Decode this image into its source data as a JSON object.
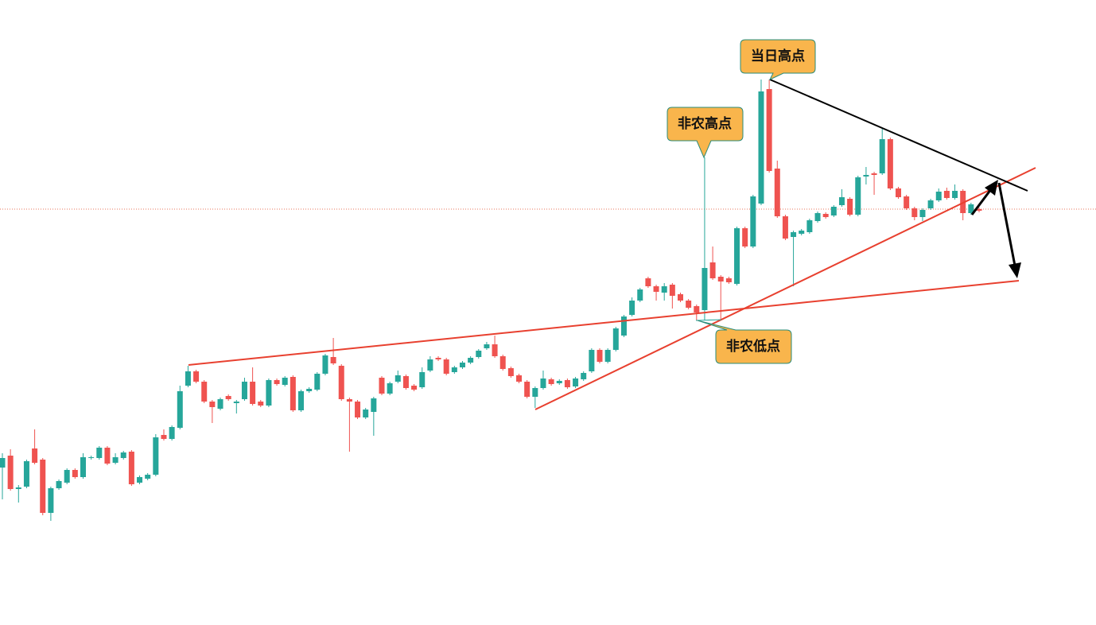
{
  "chart_data": {
    "type": "candlestick",
    "up_color": "#26a69a",
    "down_color": "#ef5350",
    "ylim": [
      0,
      786
    ],
    "annotations": [
      "当日高点",
      "非农高点",
      "非农低点"
    ],
    "open": [
      198,
      213,
      171,
      174,
      222,
      208,
      141,
      172,
      179,
      195,
      186,
      210,
      210,
      223,
      204,
      210,
      218,
      179,
      184,
      189,
      239,
      234,
      248,
      301,
      319,
      306,
      281,
      272,
      288,
      279,
      284,
      306,
      281,
      276,
      308,
      302,
      312,
      270,
      294,
      296,
      316,
      337,
      326,
      284,
      281,
      261,
      268,
      311,
      291,
      306,
      313,
      301,
      299,
      320,
      336,
      334,
      318,
      324,
      330,
      337,
      348,
      353,
      338,
      323,
      314,
      306,
      287,
      298,
      309,
      304,
      308,
      300,
      309,
      319,
      346,
      331,
      346,
      364,
      390,
      408,
      436,
      426,
      418,
      428,
      416,
      408,
      401,
      396,
      456,
      438,
      436,
      429,
      499,
      476,
      530,
      674,
      574,
      514,
      488,
      492,
      494,
      508,
      517,
      515,
      528,
      536,
      516,
      564,
      568,
      568,
      611,
      549,
      539,
      524,
      513,
      524,
      534,
      546,
      537,
      546,
      518,
      523
    ],
    "high": [
      216,
      221,
      176,
      208,
      246,
      210,
      174,
      183,
      197,
      197,
      216,
      213,
      225,
      225,
      216,
      219,
      220,
      188,
      191,
      240,
      246,
      251,
      301,
      326,
      321,
      308,
      283,
      286,
      290,
      283,
      311,
      324,
      283,
      310,
      310,
      313,
      314,
      296,
      299,
      318,
      341,
      361,
      328,
      286,
      283,
      273,
      287,
      313,
      306,
      320,
      315,
      303,
      324,
      338,
      338,
      336,
      326,
      332,
      338,
      347,
      356,
      364,
      340,
      325,
      316,
      308,
      300,
      320,
      311,
      309,
      310,
      312,
      319,
      348,
      348,
      348,
      375,
      390,
      412,
      424,
      438,
      428,
      430,
      430,
      418,
      410,
      403,
      588,
      476,
      440,
      438,
      501,
      501,
      541,
      686,
      686,
      584,
      516,
      496,
      498,
      511,
      520,
      519,
      528,
      548,
      538,
      565,
      576,
      570,
      624,
      613,
      551,
      541,
      526,
      524,
      536,
      549,
      550,
      554,
      548,
      531,
      525
    ],
    "low": [
      158,
      169,
      154,
      172,
      202,
      138,
      131,
      170,
      177,
      184,
      184,
      208,
      208,
      201,
      202,
      208,
      175,
      177,
      182,
      187,
      232,
      232,
      246,
      299,
      304,
      279,
      254,
      270,
      282,
      266,
      282,
      276,
      274,
      274,
      301,
      300,
      268,
      268,
      292,
      294,
      314,
      327,
      282,
      218,
      259,
      259,
      238,
      289,
      289,
      304,
      296,
      294,
      297,
      318,
      332,
      314,
      316,
      322,
      328,
      335,
      346,
      336,
      320,
      311,
      304,
      285,
      273,
      296,
      301,
      302,
      297,
      298,
      307,
      317,
      329,
      329,
      344,
      362,
      388,
      406,
      424,
      408,
      408,
      398,
      406,
      397,
      383,
      383,
      434,
      384,
      429,
      427,
      474,
      474,
      528,
      569,
      512,
      484,
      426,
      490,
      492,
      506,
      511,
      513,
      526,
      514,
      514,
      554,
      541,
      566,
      547,
      536,
      522,
      509,
      508,
      522,
      532,
      535,
      535,
      509,
      516,
      519
    ],
    "close": [
      210,
      171,
      173,
      206,
      204,
      141,
      172,
      181,
      195,
      186,
      211,
      211,
      223,
      203,
      211,
      217,
      177,
      186,
      189,
      236,
      234,
      249,
      294,
      319,
      306,
      281,
      274,
      284,
      284,
      281,
      306,
      278,
      276,
      308,
      303,
      311,
      270,
      294,
      297,
      316,
      339,
      329,
      284,
      281,
      261,
      271,
      285,
      291,
      304,
      314,
      298,
      296,
      318,
      334,
      334,
      316,
      324,
      330,
      336,
      345,
      353,
      338,
      322,
      313,
      306,
      287,
      298,
      310,
      303,
      307,
      299,
      310,
      317,
      346,
      331,
      346,
      373,
      388,
      408,
      422,
      426,
      419,
      426,
      414,
      408,
      399,
      393,
      449,
      436,
      432,
      431,
      499,
      476,
      539,
      671,
      571,
      514,
      486,
      494,
      496,
      509,
      518,
      513,
      526,
      538,
      516,
      563,
      566,
      566,
      611,
      549,
      538,
      524,
      513,
      522,
      534,
      545,
      537,
      546,
      518,
      529,
      521
    ]
  }
}
